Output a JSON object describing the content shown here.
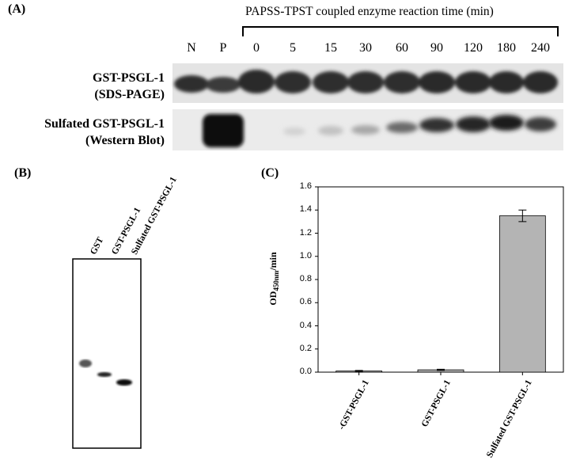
{
  "panel_a": {
    "label": "(A)",
    "time_header": "PAPSS-TPST coupled enzyme reaction time (min)",
    "lanes": [
      "N",
      "P",
      "0",
      "5",
      "15",
      "30",
      "60",
      "90",
      "120",
      "180",
      "240"
    ],
    "row1_line1": "GST-PSGL-1",
    "row1_line2": "(SDS-PAGE)",
    "row2_line1": "Sulfated GST-PSGL-1",
    "row2_line2": "(Western Blot)"
  },
  "panel_b": {
    "label": "(B)",
    "lanes": [
      "GST",
      "GST-PSGL-1",
      "Sulfated GST-PSGL-1"
    ]
  },
  "panel_c": {
    "label": "(C)",
    "ylabel_main": "OD",
    "ylabel_sub": "450nm",
    "ylabel_tail": "/min"
  },
  "chart_data": {
    "type": "bar",
    "categories": [
      "-GST-PSGL-1",
      "GST-PSGL-1",
      "Sulfated GST-PSGL-1"
    ],
    "values": [
      0.01,
      0.02,
      1.35
    ],
    "errors": [
      0.005,
      0.005,
      0.05
    ],
    "ylim": [
      0,
      1.6
    ],
    "yticks": [
      "0.0",
      "0.2",
      "0.4",
      "0.6",
      "0.8",
      "1.0",
      "1.2",
      "1.4",
      "1.6"
    ],
    "bar_color": "#b4b4b4"
  }
}
